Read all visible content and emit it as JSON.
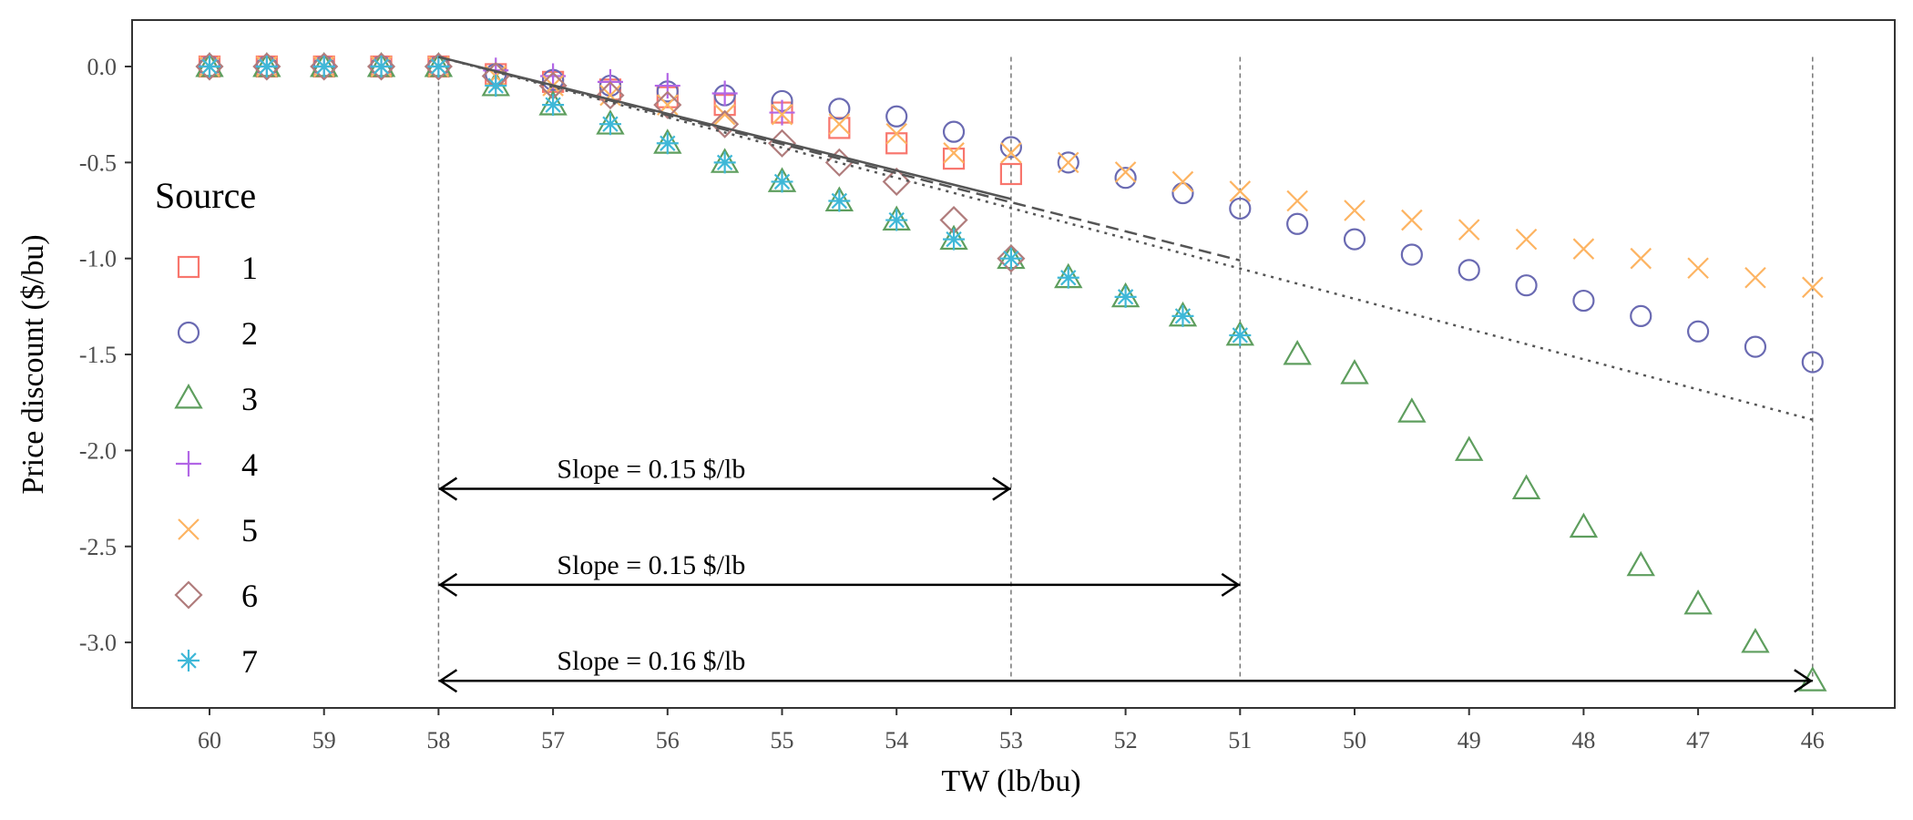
{
  "chart_data": {
    "type": "scatter",
    "xlabel": "TW (lb/bu)",
    "ylabel": "Price discount ($/bu)",
    "xlim": [
      60,
      46
    ],
    "ylim": [
      -3.2,
      0.0
    ],
    "x_ticks": [
      "60",
      "59",
      "58",
      "57",
      "56",
      "55",
      "54",
      "53",
      "52",
      "51",
      "50",
      "49",
      "48",
      "47",
      "46"
    ],
    "y_ticks": [
      "0.0",
      "-0.5",
      "-1.0",
      "-1.5",
      "-2.0",
      "-2.5",
      "-3.0"
    ],
    "legend": {
      "title": "Source",
      "position": "left"
    },
    "series": [
      {
        "name": "1",
        "marker": "square",
        "color": "#F8766D",
        "x": [
          60,
          59.5,
          59,
          58.5,
          58,
          57.5,
          57,
          56.5,
          56,
          55.5,
          55,
          54.5,
          54,
          53.5,
          53
        ],
        "y": [
          0,
          0,
          0,
          0,
          0,
          -0.04,
          -0.08,
          -0.12,
          -0.16,
          -0.2,
          -0.24,
          -0.32,
          -0.4,
          -0.48,
          -0.56
        ]
      },
      {
        "name": "2",
        "marker": "circle",
        "color": "#6A6AB2",
        "x": [
          60,
          59.5,
          59,
          58.5,
          58,
          57.5,
          57,
          56.5,
          56,
          55.5,
          55,
          54.5,
          54,
          53.5,
          53,
          52.5,
          52,
          51.5,
          51,
          50.5,
          50,
          49.5,
          49,
          48.5,
          48,
          47.5,
          47,
          46.5,
          46
        ],
        "y": [
          0,
          0,
          0,
          0,
          0,
          -0.04,
          -0.07,
          -0.1,
          -0.13,
          -0.15,
          -0.18,
          -0.22,
          -0.26,
          -0.34,
          -0.42,
          -0.5,
          -0.58,
          -0.66,
          -0.74,
          -0.82,
          -0.9,
          -0.98,
          -1.06,
          -1.14,
          -1.22,
          -1.3,
          -1.38,
          -1.46,
          -1.54
        ]
      },
      {
        "name": "3",
        "marker": "triangle",
        "color": "#5E9E5E",
        "x": [
          60,
          59.5,
          59,
          58.5,
          58,
          57.5,
          57,
          56.5,
          56,
          55.5,
          55,
          54.5,
          54,
          53.5,
          53,
          52.5,
          52,
          51.5,
          51,
          50.5,
          50,
          49.5,
          49,
          48.5,
          48,
          47.5,
          47,
          46.5,
          46
        ],
        "y": [
          0,
          0,
          0,
          0,
          0,
          -0.1,
          -0.2,
          -0.3,
          -0.4,
          -0.5,
          -0.6,
          -0.7,
          -0.8,
          -0.9,
          -1.0,
          -1.1,
          -1.2,
          -1.3,
          -1.4,
          -1.5,
          -1.6,
          -1.8,
          -2.0,
          -2.2,
          -2.4,
          -2.6,
          -2.8,
          -3.0,
          -3.2
        ]
      },
      {
        "name": "4",
        "marker": "plus",
        "color": "#B266E6",
        "x": [
          60,
          59.5,
          59,
          58.5,
          58,
          57.5,
          57,
          56.5,
          56,
          55.5,
          55
        ],
        "y": [
          0,
          0,
          0,
          0,
          0,
          -0.02,
          -0.05,
          -0.08,
          -0.1,
          -0.14,
          -0.24
        ]
      },
      {
        "name": "5",
        "marker": "cross",
        "color": "#FDB462",
        "x": [
          60,
          59.5,
          59,
          58.5,
          58,
          57.5,
          57,
          56.5,
          56,
          55.5,
          55,
          54.5,
          54,
          53.5,
          53,
          52.5,
          52,
          51.5,
          51,
          50.5,
          50,
          49.5,
          49,
          48.5,
          48,
          47.5,
          47,
          46.5,
          46
        ],
        "y": [
          0,
          0,
          0,
          0,
          0,
          -0.05,
          -0.1,
          -0.15,
          -0.2,
          -0.25,
          -0.25,
          -0.3,
          -0.35,
          -0.45,
          -0.45,
          -0.5,
          -0.55,
          -0.6,
          -0.65,
          -0.7,
          -0.75,
          -0.8,
          -0.85,
          -0.9,
          -0.95,
          -1.0,
          -1.05,
          -1.1,
          -1.15
        ]
      },
      {
        "name": "6",
        "marker": "diamond",
        "color": "#B07C7C",
        "x": [
          60,
          59.5,
          59,
          58.5,
          58,
          57.5,
          57,
          56.5,
          56,
          55.5,
          55,
          54.5,
          54,
          53.5,
          53
        ],
        "y": [
          0,
          0,
          0,
          0,
          0,
          -0.05,
          -0.1,
          -0.15,
          -0.2,
          -0.3,
          -0.4,
          -0.5,
          -0.6,
          -0.8,
          -1.0
        ]
      },
      {
        "name": "7",
        "marker": "asterisk",
        "color": "#3FB8D8",
        "x": [
          60,
          59.5,
          59,
          58.5,
          58,
          57.5,
          57,
          56.5,
          56,
          55.5,
          55,
          54.5,
          54,
          53.5,
          53,
          52.5,
          52,
          51.5,
          51
        ],
        "y": [
          0,
          0,
          0,
          0,
          0,
          -0.1,
          -0.2,
          -0.3,
          -0.4,
          -0.5,
          -0.6,
          -0.7,
          -0.8,
          -0.9,
          -1.0,
          -1.1,
          -1.2,
          -1.3,
          -1.4
        ]
      }
    ],
    "regression_lines": [
      {
        "style": "solid",
        "x": [
          58,
          53
        ],
        "y": [
          0.05,
          -0.69
        ]
      },
      {
        "style": "dashed",
        "x": [
          58,
          51
        ],
        "y": [
          0.05,
          -1.01
        ]
      },
      {
        "style": "dotted",
        "x": [
          58,
          46
        ],
        "y": [
          0.05,
          -1.84
        ]
      }
    ],
    "annotations": [
      {
        "text": "Slope = 0.15 $/lb",
        "x_start": 58,
        "x_end": 53,
        "y": -2.2
      },
      {
        "text": "Slope = 0.15 $/lb",
        "x_start": 58,
        "x_end": 51,
        "y": -2.7
      },
      {
        "text": "Slope = 0.16 $/lb",
        "x_start": 58,
        "x_end": 46,
        "y": -3.2
      }
    ],
    "guide_lines": {
      "x": [
        58,
        53,
        51,
        46
      ]
    }
  }
}
